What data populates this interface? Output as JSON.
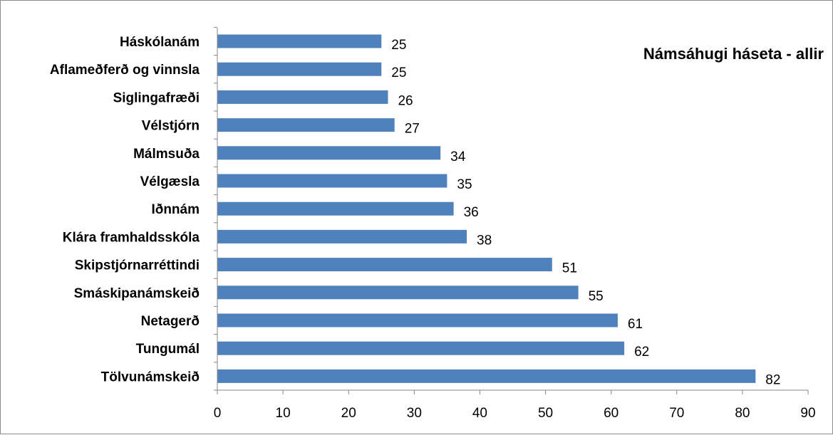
{
  "chart_data": {
    "type": "bar",
    "orientation": "horizontal",
    "title": "Námsáhugi háseta - allir",
    "categories": [
      "Háskólanám",
      "Aflameðferð og vinnsla",
      "Siglingafræði",
      "Vélstjórn",
      "Málmsuða",
      "Vélgæsla",
      "Iðnnám",
      "Klára framhaldsskóla",
      "Skipstjórnarréttindi",
      "Smáskipanámskeið",
      "Netagerð",
      "Tungumál",
      "Tölvunámskeið"
    ],
    "values": [
      25,
      25,
      26,
      27,
      34,
      35,
      36,
      38,
      51,
      55,
      61,
      62,
      82
    ],
    "xlim": [
      0,
      90
    ],
    "xticks": [
      0,
      10,
      20,
      30,
      40,
      50,
      60,
      70,
      80,
      90
    ],
    "xlabel": "",
    "ylabel": "",
    "bar_color": "#4f81bd",
    "grid": false,
    "legend": "none"
  }
}
